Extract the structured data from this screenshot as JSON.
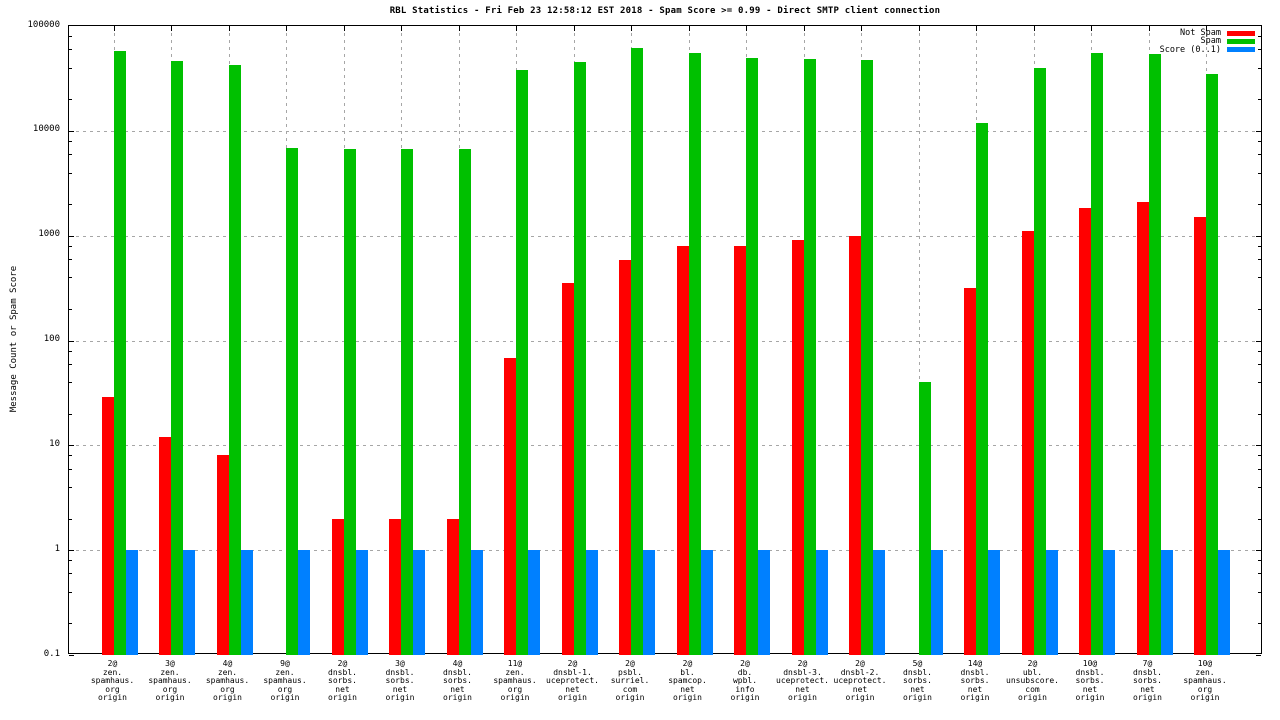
{
  "title": "RBL Statistics - Fri Feb 23 12:58:12 EST 2018 - Spam Score >= 0.99 - Direct SMTP client connection",
  "ylabel": "Message Count or Spam Score",
  "legend": [
    {
      "label": "Not Spam",
      "color": "#ff0000"
    },
    {
      "label": "Spam",
      "color": "#00c000"
    },
    {
      "label": "Score (0..1)",
      "color": "#0080ff"
    }
  ],
  "axis": {
    "y_ticks": [
      "100000",
      "10000",
      "1000",
      "100",
      "10",
      "1",
      "0.1"
    ],
    "y_scale": "log",
    "grid": true
  },
  "chart_data": {
    "type": "bar",
    "title": "RBL Statistics - Fri Feb 23 12:58:12 EST 2018 - Spam Score >= 0.99 - Direct SMTP client connection",
    "ylabel": "Message Count or Spam Score",
    "ylim": [
      0.1,
      100000
    ],
    "log_scale_y": true,
    "legend_position": "top-right",
    "categories": [
      [
        "2@",
        "zen.",
        "spamhaus.",
        "org",
        "origin"
      ],
      [
        "3@",
        "zen.",
        "spamhaus.",
        "org",
        "origin"
      ],
      [
        "4@",
        "zen.",
        "spamhaus.",
        "org",
        "origin"
      ],
      [
        "9@",
        "zen.",
        "spamhaus.",
        "org",
        "origin"
      ],
      [
        "2@",
        "dnsbl.",
        "sorbs.",
        "net",
        "origin"
      ],
      [
        "3@",
        "dnsbl.",
        "sorbs.",
        "net",
        "origin"
      ],
      [
        "4@",
        "dnsbl.",
        "sorbs.",
        "net",
        "origin"
      ],
      [
        "11@",
        "zen.",
        "spamhaus.",
        "org",
        "origin"
      ],
      [
        "2@",
        "dnsbl-1.",
        "uceprotect.",
        "net",
        "origin"
      ],
      [
        "2@",
        "psbl.",
        "surriel.",
        "com",
        "origin"
      ],
      [
        "2@",
        "bl.",
        "spamcop.",
        "net",
        "origin"
      ],
      [
        "2@",
        "db.",
        "wpbl.",
        "info",
        "origin"
      ],
      [
        "2@",
        "dnsbl-3.",
        "uceprotect.",
        "net",
        "origin"
      ],
      [
        "2@",
        "dnsbl-2.",
        "uceprotect.",
        "net",
        "origin"
      ],
      [
        "5@",
        "dnsbl.",
        "sorbs.",
        "net",
        "origin"
      ],
      [
        "14@",
        "dnsbl.",
        "sorbs.",
        "net",
        "origin"
      ],
      [
        "2@",
        "ubl.",
        "unsubscore.",
        "com",
        "origin"
      ],
      [
        "10@",
        "dnsbl.",
        "sorbs.",
        "net",
        "origin"
      ],
      [
        "7@",
        "dnsbl.",
        "sorbs.",
        "net",
        "origin"
      ],
      [
        "10@",
        "zen.",
        "spamhaus.",
        "org",
        "origin"
      ]
    ],
    "series": [
      {
        "name": "Not Spam",
        "color": "#ff0000",
        "values": [
          29,
          12,
          8,
          0,
          2,
          2,
          2,
          68,
          350,
          580,
          800,
          790,
          900,
          1000,
          0,
          320,
          1100,
          1850,
          2100,
          1500
        ]
      },
      {
        "name": "Spam",
        "color": "#00c000",
        "values": [
          58000,
          46000,
          42000,
          6800,
          6700,
          6700,
          6700,
          38000,
          45000,
          62000,
          55000,
          49000,
          48000,
          47000,
          40,
          12000,
          40000,
          55000,
          54000,
          35000
        ]
      },
      {
        "name": "Score (0..1)",
        "color": "#0080ff",
        "values": [
          1,
          1,
          1,
          1,
          1,
          1,
          1,
          1,
          1,
          1,
          1,
          1,
          1,
          1,
          1,
          1,
          1,
          1,
          1,
          1
        ]
      }
    ]
  }
}
